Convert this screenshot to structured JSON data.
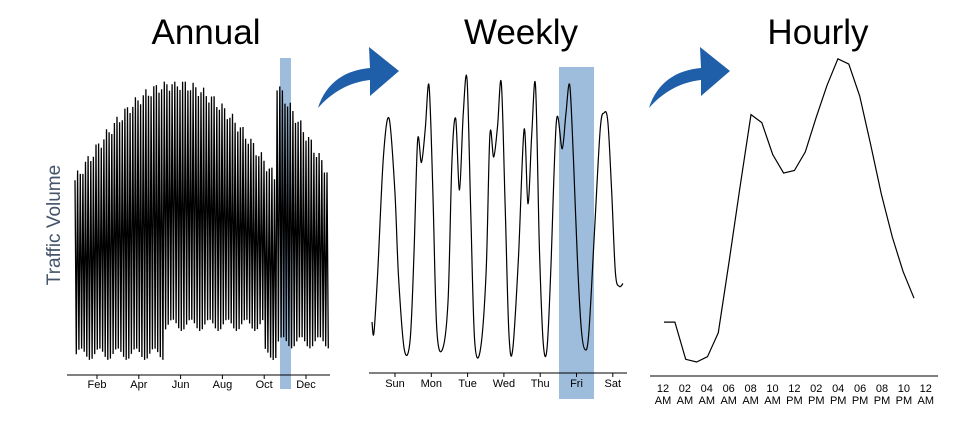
{
  "figure": {
    "ylabel": "Traffic Volume",
    "line_color": "#000000",
    "highlight_color": "#7ea7d1",
    "arrow_color": "#1f5ea8"
  },
  "chart_data": [
    {
      "type": "line",
      "title": "Annual",
      "ylabel": "Traffic Volume",
      "categories": [
        "Feb",
        "Apr",
        "Jun",
        "Aug",
        "Oct",
        "Dec"
      ],
      "highlight": "Oct–Nov",
      "ylim": [
        0,
        1
      ],
      "note": "Daily oscillation: peaks rise from ~0.62 (Jan) to ~0.95 (Jun–Aug), then fall to ~0.65 (Dec); troughs near ~0.02"
    },
    {
      "type": "line",
      "title": "Weekly",
      "categories": [
        "Sun",
        "Mon",
        "Tue",
        "Wed",
        "Thu",
        "Fri",
        "Sat"
      ],
      "highlight": "Fri",
      "ylim": [
        0,
        1
      ],
      "x": [
        0,
        0.05,
        0.15,
        0.3,
        0.45,
        0.6,
        0.7,
        0.85,
        1.0,
        1.1,
        1.2,
        1.3,
        1.4,
        1.5,
        1.6,
        1.7,
        1.85,
        2.0,
        2.1,
        2.2,
        2.3,
        2.4,
        2.5,
        2.6,
        2.7,
        2.85,
        3.0,
        3.1,
        3.2,
        3.3,
        3.4,
        3.5,
        3.6,
        3.7,
        3.85,
        4.0,
        4.1,
        4.2,
        4.3,
        4.4,
        4.5,
        4.6,
        4.7,
        4.85,
        5.0,
        5.1,
        5.2,
        5.3,
        5.4,
        5.5,
        5.6,
        5.7,
        5.85,
        6.0,
        6.1,
        6.2,
        6.3,
        6.4,
        6.5,
        6.6
      ],
      "values": [
        0.12,
        0.08,
        0.3,
        0.72,
        0.86,
        0.6,
        0.28,
        0.02,
        0.05,
        0.35,
        0.78,
        0.7,
        0.82,
        0.98,
        0.6,
        0.1,
        0.02,
        0.2,
        0.7,
        0.86,
        0.6,
        0.88,
        1.0,
        0.5,
        0.05,
        0.02,
        0.3,
        0.8,
        0.72,
        0.83,
        0.99,
        0.55,
        0.08,
        0.02,
        0.35,
        0.82,
        0.55,
        0.8,
        0.98,
        0.4,
        0.05,
        0.02,
        0.3,
        0.85,
        0.75,
        0.88,
        0.98,
        0.7,
        0.35,
        0.1,
        0.02,
        0.08,
        0.45,
        0.82,
        0.88,
        0.85,
        0.6,
        0.3,
        0.25,
        0.26
      ]
    },
    {
      "type": "line",
      "title": "Hourly",
      "categories": [
        "12\nAM",
        "02\nAM",
        "04\nAM",
        "06\nAM",
        "08\nAM",
        "10\nAM",
        "12\nPM",
        "02\nPM",
        "04\nPM",
        "06\nPM",
        "08\nPM",
        "10\nPM",
        "12\nAM"
      ],
      "tick_top": [
        "12",
        "02",
        "04",
        "06",
        "08",
        "10",
        "12",
        "02",
        "04",
        "06",
        "08",
        "10",
        "12"
      ],
      "tick_bottom": [
        "AM",
        "AM",
        "AM",
        "AM",
        "AM",
        "AM",
        "PM",
        "PM",
        "PM",
        "PM",
        "PM",
        "PM",
        "AM"
      ],
      "x": [
        0,
        1,
        2,
        3,
        4,
        5,
        6,
        7,
        8,
        9,
        10,
        11,
        12,
        13,
        14,
        15,
        16,
        17,
        18,
        19,
        20,
        21,
        22,
        23
      ],
      "values": [
        0.15,
        0.15,
        0.01,
        0.0,
        0.02,
        0.11,
        0.38,
        0.66,
        0.93,
        0.9,
        0.78,
        0.71,
        0.72,
        0.79,
        0.92,
        1.04,
        1.14,
        1.12,
        1.0,
        0.82,
        0.63,
        0.47,
        0.34,
        0.24
      ]
    }
  ]
}
